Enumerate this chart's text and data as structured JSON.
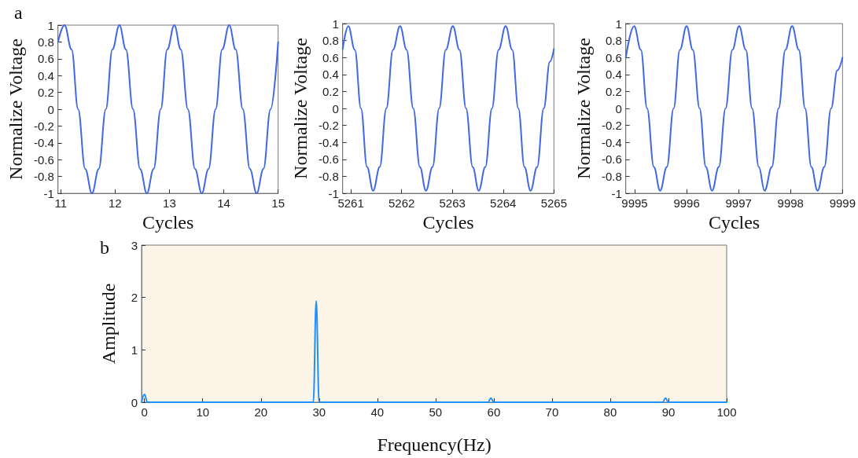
{
  "chart_data": [
    {
      "type": "line",
      "xlabel": "Cycles",
      "ylabel": "Normalize Voltage",
      "annotations": [
        "a"
      ],
      "xlim": [
        10.95,
        15
      ],
      "xticks": [
        11,
        12,
        13,
        14,
        15
      ],
      "ylim": [
        -1,
        1
      ],
      "yticks": [
        -1,
        -0.8,
        -0.6,
        -0.4,
        -0.2,
        0,
        0.2,
        0.4,
        0.6,
        0.8,
        1
      ],
      "grid": false,
      "marker": "none",
      "line_style": "solid",
      "series": [
        {
          "color": "#4169e1",
          "x": [
            10.95,
            11.07,
            11.2,
            11.32,
            11.45,
            11.575,
            11.7,
            11.83,
            11.95,
            12.08,
            12.2,
            12.33,
            12.46,
            12.585,
            12.71,
            12.84,
            12.96,
            13.09,
            13.21,
            13.34,
            13.47,
            13.595,
            13.72,
            13.85,
            13.97,
            14.1,
            14.22,
            14.35,
            14.48,
            14.605,
            14.73,
            14.86,
            15
          ],
          "values": [
            0.8,
            1,
            0.71,
            0,
            -0.71,
            -1,
            -0.71,
            0,
            0.71,
            1,
            0.71,
            0,
            -0.71,
            -1,
            -0.71,
            0,
            0.71,
            1,
            0.71,
            0,
            -0.71,
            -1,
            -0.71,
            0,
            0.71,
            1,
            0.71,
            0,
            -0.71,
            -1,
            -0.71,
            0,
            0.8
          ]
        }
      ]
    },
    {
      "type": "line",
      "xlabel": "Cycles",
      "ylabel": "Normalize Voltage",
      "xlim": [
        5260.84,
        5265
      ],
      "xticks": [
        5261,
        5262,
        5263,
        5264,
        5265
      ],
      "ylim": [
        -1,
        1
      ],
      "yticks": [
        -1,
        -0.8,
        -0.6,
        -0.4,
        -0.2,
        0,
        0.2,
        0.4,
        0.6,
        0.8,
        1
      ],
      "grid": false,
      "marker": "none",
      "line_style": "solid",
      "series": [
        {
          "color": "#4169e1",
          "x": [
            5260.84,
            5260.95,
            5261.08,
            5261.2,
            5261.32,
            5261.44,
            5261.57,
            5261.7,
            5261.83,
            5261.97,
            5262.1,
            5262.23,
            5262.36,
            5262.48,
            5262.61,
            5262.74,
            5262.87,
            5263.01,
            5263.14,
            5263.27,
            5263.4,
            5263.52,
            5263.65,
            5263.78,
            5263.91,
            5264.05,
            5264.18,
            5264.3,
            5264.42,
            5264.54,
            5264.67,
            5264.8,
            5264.92,
            5265
          ],
          "values": [
            0.7,
            0.97,
            0.69,
            0,
            -0.69,
            -0.97,
            -0.69,
            0,
            0.69,
            0.97,
            0.69,
            0,
            -0.69,
            -0.97,
            -0.69,
            0,
            0.69,
            0.97,
            0.69,
            0,
            -0.69,
            -0.97,
            -0.69,
            0,
            0.69,
            0.97,
            0.69,
            0,
            -0.69,
            -0.97,
            -0.69,
            0,
            0.55,
            0.7
          ]
        }
      ]
    },
    {
      "type": "line",
      "xlabel": "Cycles",
      "ylabel": "Normalize Voltage",
      "xlim": [
        9994.83,
        9999
      ],
      "xticks": [
        9995,
        9996,
        9997,
        9998,
        9999
      ],
      "ylim": [
        -1,
        1
      ],
      "yticks": [
        -1,
        -0.8,
        -0.6,
        -0.4,
        -0.2,
        0,
        0.2,
        0.4,
        0.6,
        0.8,
        1
      ],
      "grid": false,
      "marker": "none",
      "line_style": "solid",
      "series": [
        {
          "color": "#4169e1",
          "x": [
            9994.83,
            9994.99,
            9995.12,
            9995.24,
            9995.37,
            9995.49,
            9995.62,
            9995.75,
            9995.87,
            9996,
            9996.12,
            9996.25,
            9996.37,
            9996.49,
            9996.62,
            9996.75,
            9996.88,
            9997.01,
            9997.14,
            9997.26,
            9997.39,
            9997.5,
            9997.64,
            9997.77,
            9997.9,
            9998.03,
            9998.16,
            9998.28,
            9998.4,
            9998.52,
            9998.65,
            9998.78,
            9998.9,
            9999
          ],
          "values": [
            0.6,
            0.97,
            0.69,
            0,
            -0.69,
            -0.97,
            -0.69,
            0,
            0.69,
            0.97,
            0.69,
            0,
            -0.69,
            -0.97,
            -0.69,
            0,
            0.69,
            0.97,
            0.69,
            0,
            -0.69,
            -0.97,
            -0.69,
            0,
            0.69,
            0.97,
            0.69,
            0,
            -0.69,
            -0.97,
            -0.69,
            0,
            0.45,
            0.6
          ]
        }
      ]
    },
    {
      "type": "line",
      "xlabel": "Frequency(Hz)",
      "ylabel": "Amplitude",
      "annotations": [
        "b"
      ],
      "xlim": [
        -0.5,
        100
      ],
      "xticks": [
        0,
        10,
        20,
        30,
        40,
        50,
        60,
        70,
        80,
        90,
        100
      ],
      "ylim": [
        0,
        3
      ],
      "yticks": [
        0,
        1,
        2,
        3
      ],
      "grid": false,
      "marker": "none",
      "line_style": "solid",
      "series": [
        {
          "color": "#1e90ff",
          "x": [
            -0.5,
            0,
            0.5,
            29,
            29.5,
            30,
            59,
            59.5,
            60,
            89,
            89.5,
            90,
            100
          ],
          "values": [
            0,
            0.15,
            0,
            0,
            1.93,
            0,
            0,
            0.08,
            0,
            0,
            0.08,
            0,
            0
          ]
        }
      ]
    }
  ]
}
